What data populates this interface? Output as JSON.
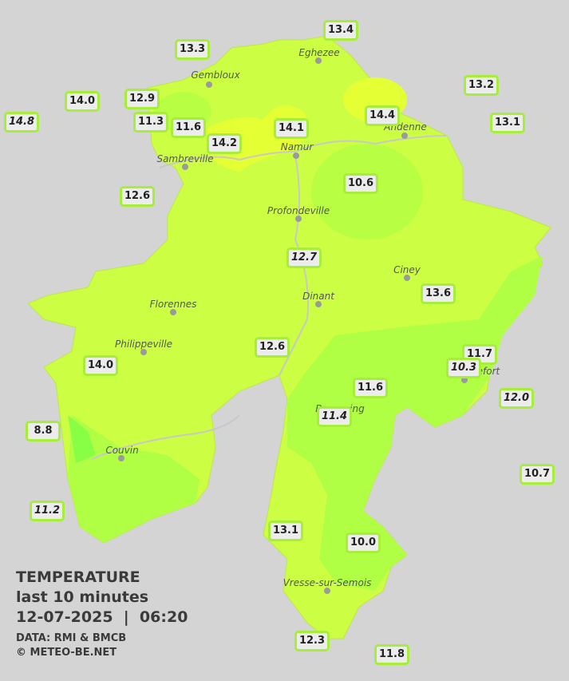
{
  "legend": {
    "title": "TEMPERATURE",
    "subtitle": "last 10 minutes",
    "datetime": "12-07-2025  |  06:20",
    "source": "DATA: RMI & BMCB",
    "credit": "© METEO-BE.NET"
  },
  "cities": [
    "Eghezee",
    "Gembloux",
    "Andenne",
    "Namur",
    "Sambreville",
    "Profondeville",
    "Ciney",
    "Dinant",
    "Florennes",
    "Philippeville",
    "Rochefort",
    "Beauraing",
    "Couvin",
    "Vresse-sur-Semois"
  ],
  "stations": [
    "13.4",
    "13.3",
    "13.2",
    "14.0",
    "12.9",
    "14.8",
    "11.3",
    "11.6",
    "14.4",
    "14.1",
    "13.1",
    "14.2",
    "10.6",
    "12.6",
    "12.7",
    "13.6",
    "12.6",
    "11.7",
    "10.3",
    "14.0",
    "11.6",
    "12.0",
    "11.4",
    "8.8",
    "10.7",
    "11.2",
    "13.1",
    "10.0",
    "12.3",
    "11.8"
  ]
}
